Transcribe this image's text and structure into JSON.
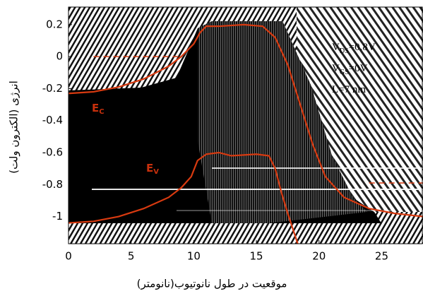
{
  "chart_data": {
    "type": "line",
    "xlabel": "موقعیت در طول نانوتیوب(نانومتر)",
    "ylabel": "انرژی (الکترون ولت)",
    "xlim": [
      0,
      28.3
    ],
    "ylim": [
      -1.17,
      0.31
    ],
    "xticks": [
      0,
      5,
      10,
      15,
      20,
      25
    ],
    "yticks": [
      0.2,
      0,
      -0.2,
      -0.4,
      -0.6,
      -0.8,
      -1
    ],
    "series": [
      {
        "color": "#d83a10",
        "x": [
          0,
          2,
          4,
          6,
          8,
          9,
          10,
          10.5,
          11,
          12,
          14,
          15.5,
          16.5,
          17.5,
          18.5,
          19.5,
          20.5,
          22,
          24,
          26,
          28.3
        ],
        "values": [
          -0.23,
          -0.22,
          -0.19,
          -0.14,
          -0.06,
          0.0,
          0.08,
          0.15,
          0.19,
          0.19,
          0.2,
          0.19,
          0.12,
          -0.05,
          -0.3,
          -0.55,
          -0.75,
          -0.88,
          -0.95,
          -0.98,
          -1.0
        ]
      },
      {
        "color": "#d83a10",
        "x": [
          0,
          2,
          4,
          6,
          8,
          9,
          9.8,
          10.3,
          11,
          12,
          13,
          15,
          16,
          16.5,
          17,
          17.5,
          18.3
        ],
        "values": [
          -1.04,
          -1.03,
          -1.0,
          -0.95,
          -0.88,
          -0.82,
          -0.75,
          -0.65,
          -0.61,
          -0.6,
          -0.62,
          -0.61,
          -0.62,
          -0.7,
          -0.85,
          -0.98,
          -1.17
        ]
      },
      {
        "color": "#d83a10",
        "dash": true,
        "x": [
          2,
          9
        ],
        "values": [
          0,
          0
        ]
      },
      {
        "color": "#d83a10",
        "dash": true,
        "x": [
          24,
          28.3
        ],
        "values": [
          -0.79,
          -0.79
        ]
      }
    ],
    "annotations": [
      {
        "text": "E",
        "sub": "C"
      },
      {
        "text": "E",
        "sub": "V"
      },
      {
        "text": "V",
        "sub": "DS",
        "rest": "=0.8V"
      },
      {
        "text": "V",
        "sub": "GS",
        "rest": "=0V"
      },
      {
        "text": "L=7 nm"
      }
    ]
  }
}
